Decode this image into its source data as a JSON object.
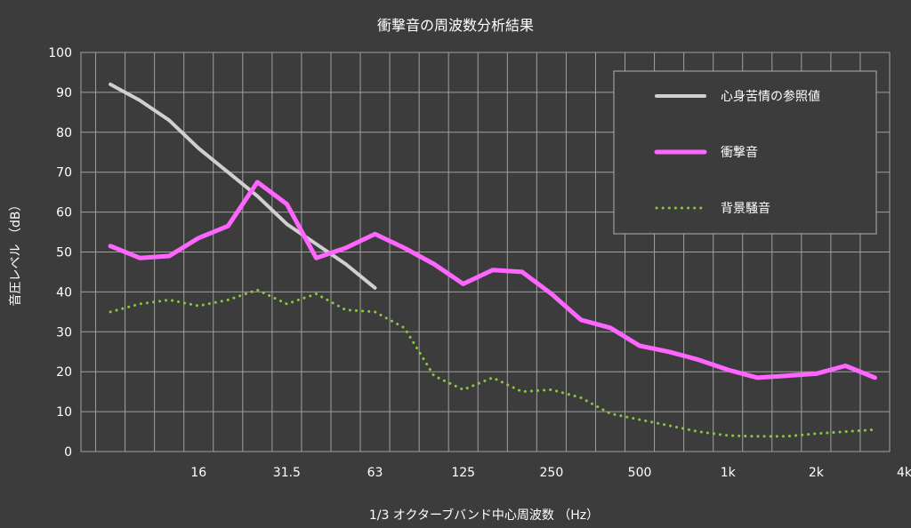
{
  "chart_data": {
    "type": "line",
    "title": "衝撃音の周波数分析結果",
    "xlabel": "1/3 オクターブバンド中心周波数 （Hz）",
    "ylabel": "音圧レベル （dB）",
    "ylim": [
      0,
      100
    ],
    "yticks": [
      0,
      10,
      20,
      30,
      40,
      50,
      60,
      70,
      80,
      90,
      100
    ],
    "grid": true,
    "legend_position": "top-right",
    "x_bands": [
      8,
      10,
      12.5,
      16,
      20,
      25,
      31.5,
      40,
      50,
      63,
      80,
      100,
      125,
      160,
      200,
      250,
      315,
      400,
      500,
      630,
      800,
      1000,
      1250,
      1600,
      2000,
      2500,
      3150,
      4000
    ],
    "x_tick_labels": [
      {
        "band_index": 3,
        "label": "16"
      },
      {
        "band_index": 6,
        "label": "31.5"
      },
      {
        "band_index": 9,
        "label": "63"
      },
      {
        "band_index": 12,
        "label": "125"
      },
      {
        "band_index": 15,
        "label": "250"
      },
      {
        "band_index": 18,
        "label": "500"
      },
      {
        "band_index": 21,
        "label": "1k"
      },
      {
        "band_index": 24,
        "label": "2k"
      },
      {
        "band_index": 27,
        "label": "4k"
      }
    ],
    "series": [
      {
        "name": "心身苦情の参照値",
        "color": "#d0d0d0",
        "style": "solid",
        "values": [
          92,
          88,
          83,
          76,
          70,
          64,
          57,
          52,
          47,
          41
        ]
      },
      {
        "name": "衝撃音",
        "color": "#ff66ff",
        "style": "solid",
        "values": [
          51.5,
          48.5,
          49,
          53.5,
          56.5,
          67.5,
          62,
          48.5,
          51,
          54.5,
          51,
          47,
          42,
          45.5,
          45,
          39.5,
          33,
          31,
          26.5,
          25,
          23,
          20.5,
          18.5,
          19,
          19.5,
          21.5,
          18.5
        ]
      },
      {
        "name": "背景騒音",
        "color": "#8cc63f",
        "style": "dotted",
        "values": [
          35,
          37,
          38,
          36.5,
          38,
          40.5,
          37,
          39.5,
          35.5,
          35,
          31,
          19,
          15.5,
          18.5,
          15,
          15.5,
          13.5,
          9.5,
          8,
          6.5,
          5,
          4,
          3.8,
          3.8,
          4.5,
          5,
          5.5
        ]
      }
    ]
  }
}
